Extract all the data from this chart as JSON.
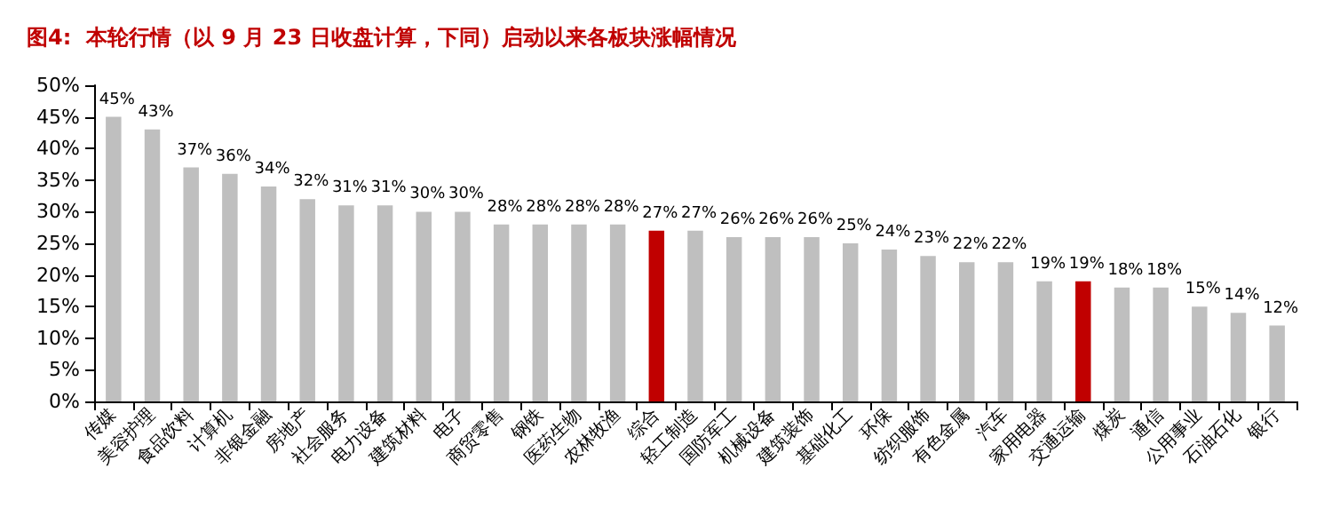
{
  "chart_data": {
    "type": "bar",
    "title": "图4:  本轮行情（以 9 月 23 日收盘计算，下同）启动以来各板块涨幅情况",
    "categories": [
      "传媒",
      "美容护理",
      "食品饮料",
      "计算机",
      "非银金融",
      "房地产",
      "社会服务",
      "电力设备",
      "建筑材料",
      "电子",
      "商贸零售",
      "钢铁",
      "医药生物",
      "农林牧渔",
      "综合",
      "轻工制造",
      "国防军工",
      "机械设备",
      "建筑装饰",
      "基础化工",
      "环保",
      "纺织服饰",
      "有色金属",
      "汽车",
      "家用电器",
      "交通运输",
      "煤炭",
      "通信",
      "公用事业",
      "石油石化",
      "银行"
    ],
    "values": [
      45,
      43,
      37,
      36,
      34,
      32,
      31,
      31,
      30,
      30,
      28,
      28,
      28,
      28,
      27,
      27,
      26,
      26,
      26,
      25,
      24,
      23,
      22,
      22,
      19,
      19,
      18,
      18,
      15,
      14,
      12
    ],
    "value_labels": [
      "45%",
      "43%",
      "37%",
      "36%",
      "34%",
      "32%",
      "31%",
      "31%",
      "30%",
      "30%",
      "28%",
      "28%",
      "28%",
      "28%",
      "27%",
      "27%",
      "26%",
      "26%",
      "26%",
      "25%",
      "24%",
      "23%",
      "22%",
      "22%",
      "19%",
      "19%",
      "18%",
      "18%",
      "15%",
      "14%",
      "12%"
    ],
    "colors": [
      "#bfbfbf",
      "#bfbfbf",
      "#bfbfbf",
      "#bfbfbf",
      "#bfbfbf",
      "#bfbfbf",
      "#bfbfbf",
      "#bfbfbf",
      "#bfbfbf",
      "#bfbfbf",
      "#bfbfbf",
      "#bfbfbf",
      "#bfbfbf",
      "#bfbfbf",
      "#c00000",
      "#bfbfbf",
      "#bfbfbf",
      "#bfbfbf",
      "#bfbfbf",
      "#bfbfbf",
      "#bfbfbf",
      "#bfbfbf",
      "#bfbfbf",
      "#bfbfbf",
      "#bfbfbf",
      "#c00000",
      "#bfbfbf",
      "#bfbfbf",
      "#bfbfbf",
      "#bfbfbf",
      "#bfbfbf"
    ],
    "ylim": [
      0,
      50
    ],
    "yticks": [
      {
        "value": 0,
        "label": "0%"
      },
      {
        "value": 5,
        "label": "5%"
      },
      {
        "value": 10,
        "label": "10%"
      },
      {
        "value": 15,
        "label": "15%"
      },
      {
        "value": 20,
        "label": "20%"
      },
      {
        "value": 25,
        "label": "25%"
      },
      {
        "value": 30,
        "label": "30%"
      },
      {
        "value": 35,
        "label": "35%"
      },
      {
        "value": 40,
        "label": "40%"
      },
      {
        "value": 45,
        "label": "45%"
      },
      {
        "value": 50,
        "label": "50%"
      }
    ],
    "grid": false
  }
}
